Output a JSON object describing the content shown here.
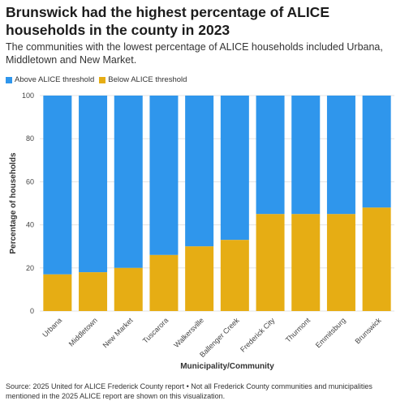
{
  "title": "Brunswick had the highest percentage of ALICE households in the county in 2023",
  "subtitle": "The communities with the lowest percentage of ALICE households included Urbana, Middletown and New Market.",
  "legend": {
    "above_label": "Above ALICE threshold",
    "below_label": "Below ALICE threshold"
  },
  "colors": {
    "above": "#2f96ec",
    "below": "#e6ad14"
  },
  "source": "Source: 2025 United for ALICE Frederick County report • Not all Frederick County communities and municipalities mentioned in the 2025 ALICE report are shown on this visualization.",
  "chart_data": {
    "type": "bar",
    "stacked": true,
    "categories": [
      "Urbana",
      "Middletown",
      "New Market",
      "Tuscarora",
      "Walkersville",
      "Ballenger Creek",
      "Frederick City",
      "Thurmont",
      "Emmitsburg",
      "Brunswick"
    ],
    "series": [
      {
        "name": "Below ALICE threshold",
        "values": [
          17,
          18,
          20,
          26,
          30,
          33,
          45,
          45,
          45,
          48
        ]
      },
      {
        "name": "Above ALICE threshold",
        "values": [
          83,
          82,
          80,
          74,
          70,
          67,
          55,
          55,
          55,
          52
        ]
      }
    ],
    "xlabel": "Municipality/Community",
    "ylabel": "Percentage of households",
    "ylim": [
      0,
      100
    ],
    "yticks": [
      "0",
      "20",
      "40",
      "60",
      "80",
      "100"
    ],
    "grid": true,
    "legend_position": "top-left"
  }
}
